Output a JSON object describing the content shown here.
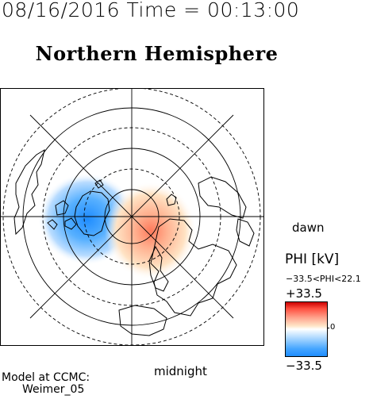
{
  "header": {
    "timestamp": "08/16/2016 Time = 00:13:00",
    "hemisphere": "Northern Hemisphere"
  },
  "map": {
    "dawn_label": "dawn",
    "midnight_label": "midnight"
  },
  "colorbar": {
    "title": "PHI [kV]",
    "range_text": "−33.5<PHI<22.1",
    "max_label": "+33.5",
    "min_label": "−33.5",
    "zero_label": "0",
    "colors": {
      "positive": "#cc0000",
      "neutral": "#ffffff",
      "negative": "#1e8cff"
    }
  },
  "credit": {
    "line1": "Model at CCMC:",
    "line2": "Weimer_05"
  }
}
